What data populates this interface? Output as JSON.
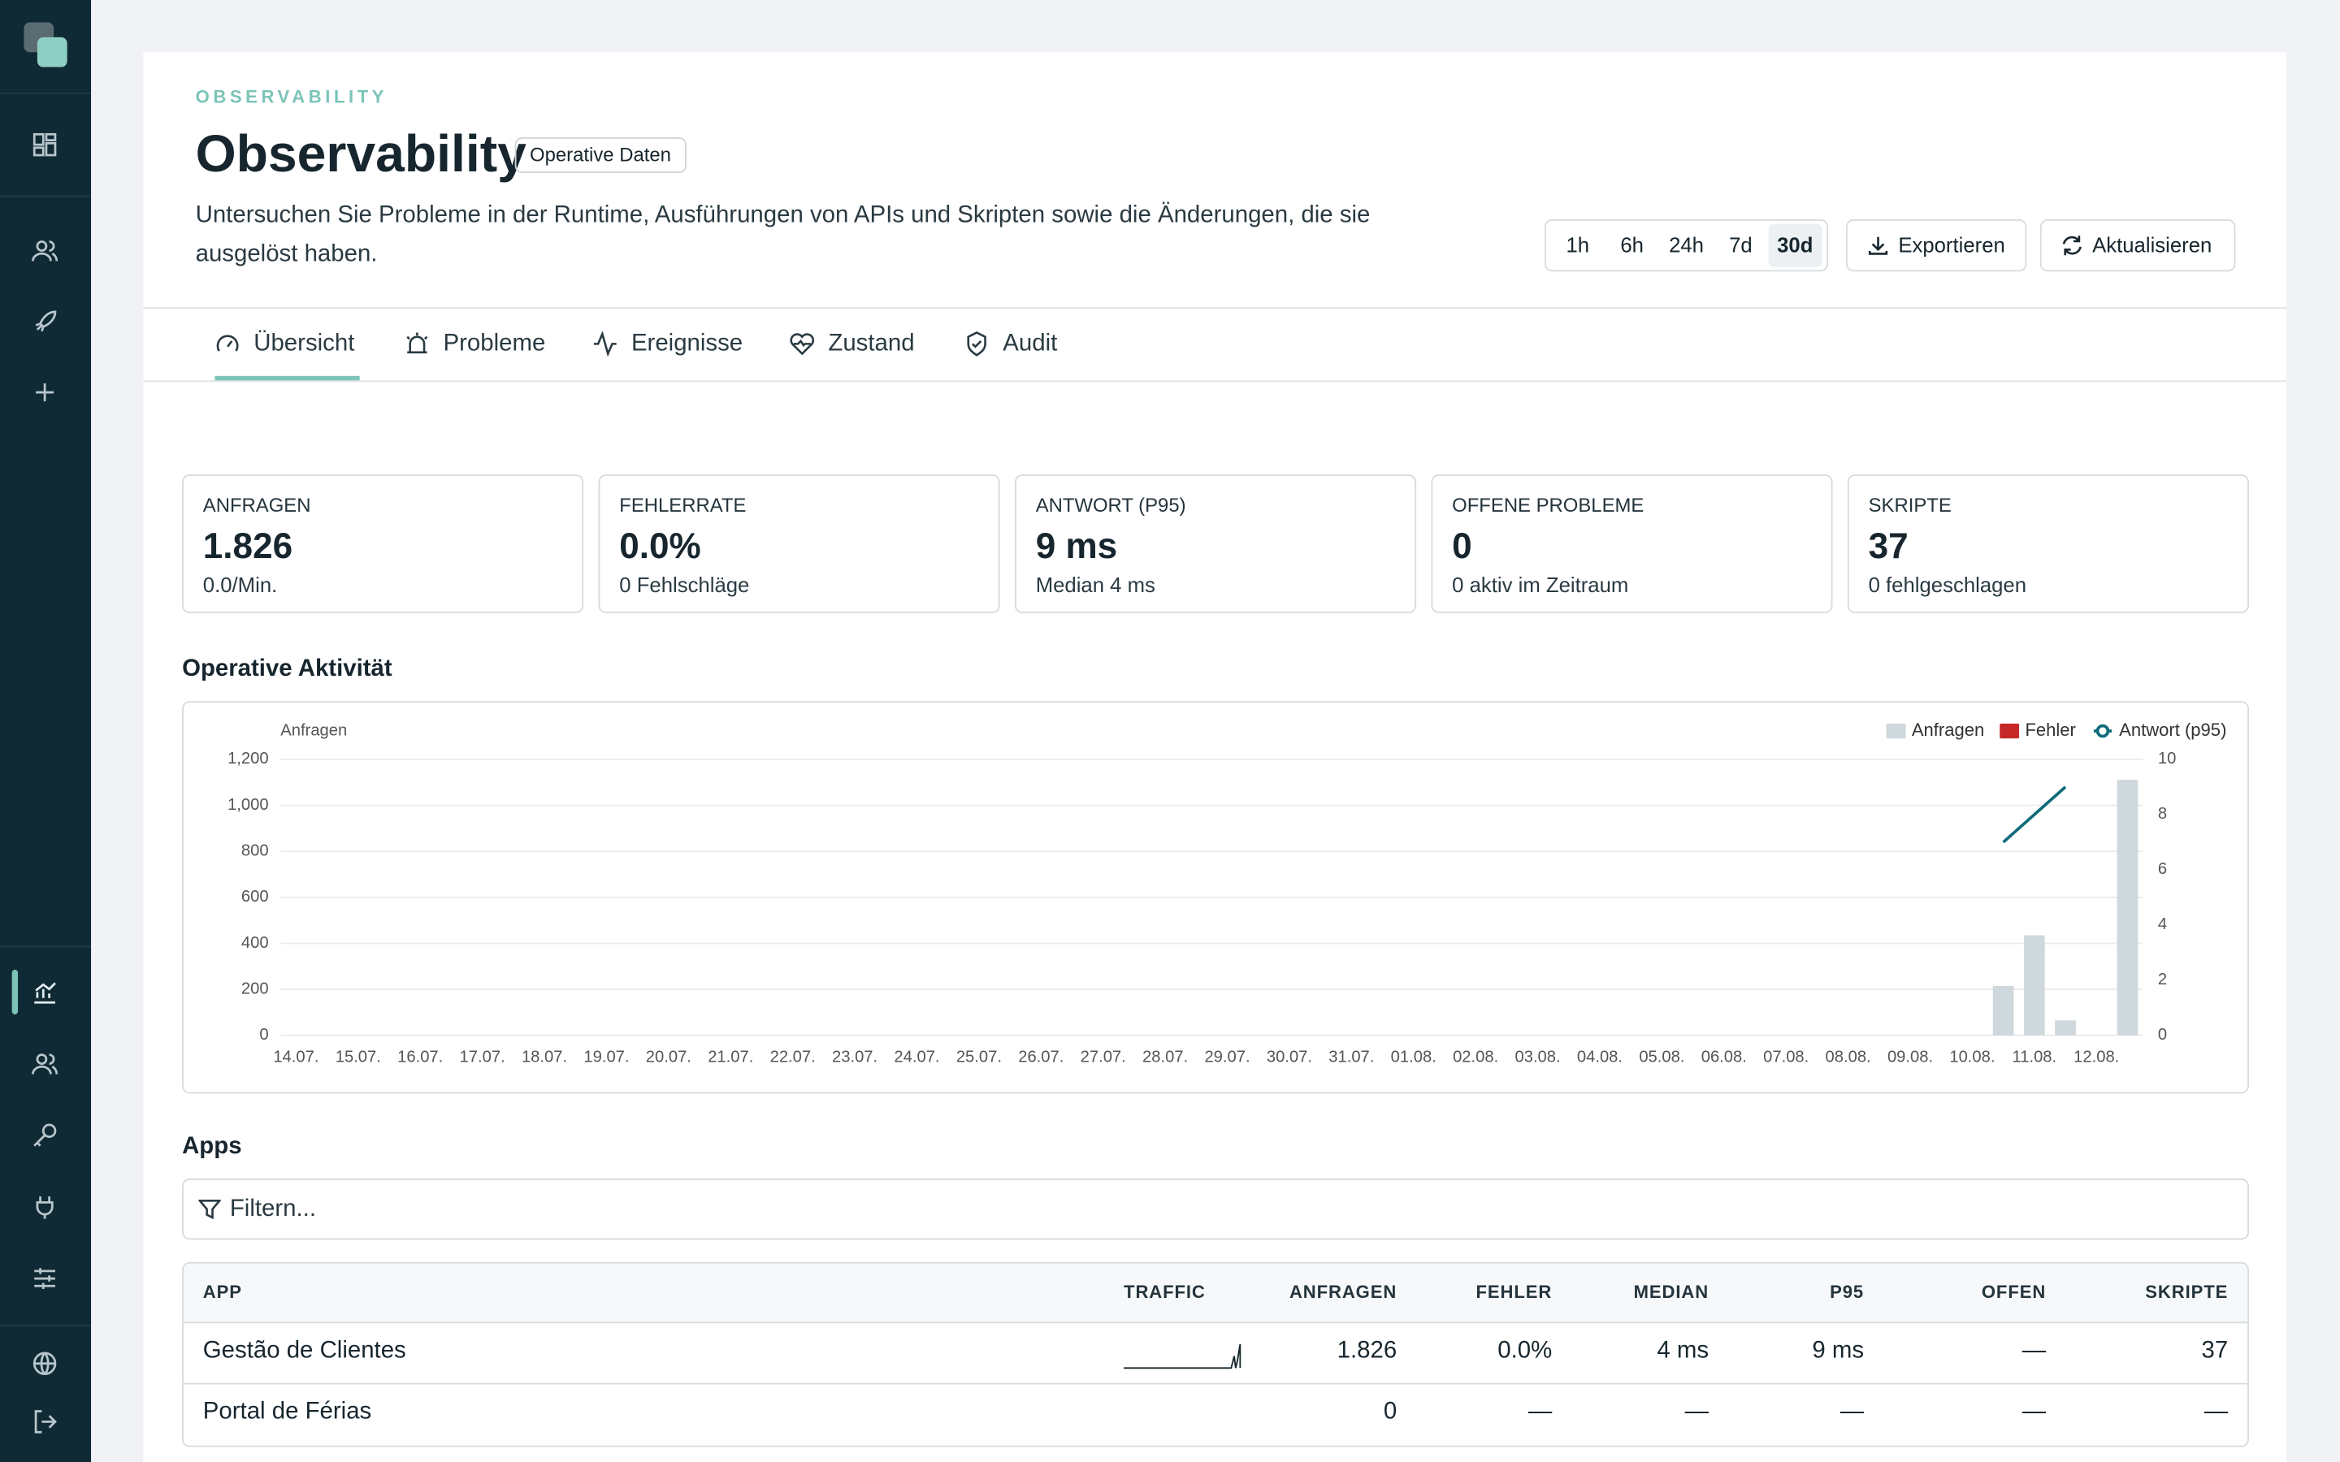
{
  "header": {
    "eyebrow": "OBSERVABILITY",
    "title": "Observability",
    "badge": "Operative Daten",
    "description": "Untersuchen Sie Probleme in der Runtime, Ausführungen von APIs und Skripten sowie die Änderungen, die sie ausgelöst haben.",
    "ranges": [
      "1h",
      "6h",
      "24h",
      "7d",
      "30d"
    ],
    "active_range": 4,
    "actions": [
      "Exportieren",
      "Aktualisieren"
    ]
  },
  "tabs": [
    "Übersicht",
    "Probleme",
    "Ereignisse",
    "Zustand",
    "Audit"
  ],
  "kpis": [
    {
      "label": "ANFRAGEN",
      "value": "1.826",
      "sub": "0.0/Min."
    },
    {
      "label": "FEHLERRATE",
      "value": "0.0%",
      "sub": "0 Fehlschläge"
    },
    {
      "label": "ANTWORT (P95)",
      "value": "9 ms",
      "sub": "Median 4 ms"
    },
    {
      "label": "OFFENE PROBLEME",
      "value": "0",
      "sub": "0 aktiv im Zeitraum"
    },
    {
      "label": "SKRIPTE",
      "value": "37",
      "sub": "0 fehlgeschlagen"
    }
  ],
  "activity_title": "Operative Aktivität",
  "chart_data": {
    "type": "bar",
    "y_label": "Anfragen",
    "categories": [
      "14.07.",
      null,
      "15.07.",
      null,
      "16.07.",
      null,
      "17.07.",
      null,
      "18.07.",
      null,
      "19.07.",
      null,
      "20.07.",
      null,
      "21.07.",
      null,
      "22.07.",
      null,
      "23.07.",
      null,
      "24.07.",
      null,
      "25.07.",
      null,
      "26.07.",
      null,
      "27.07.",
      null,
      "28.07.",
      null,
      "29.07.",
      null,
      "30.07.",
      null,
      "31.07.",
      null,
      "01.08.",
      null,
      "02.08.",
      null,
      "03.08.",
      null,
      "04.08.",
      null,
      "05.08.",
      null,
      "06.08.",
      null,
      "07.08.",
      null,
      "08.08.",
      null,
      "09.08.",
      null,
      "10.08.",
      null,
      "11.08.",
      null,
      "12.08.",
      null
    ],
    "series": [
      {
        "name": "Anfragen",
        "color": "#cfd8dc",
        "values": [
          0,
          0,
          0,
          0,
          0,
          0,
          0,
          0,
          0,
          0,
          0,
          0,
          0,
          0,
          0,
          0,
          0,
          0,
          0,
          0,
          0,
          0,
          0,
          0,
          0,
          0,
          0,
          0,
          0,
          0,
          0,
          0,
          0,
          0,
          0,
          0,
          0,
          0,
          0,
          0,
          0,
          0,
          0,
          0,
          0,
          0,
          0,
          0,
          0,
          0,
          0,
          0,
          0,
          0,
          0,
          215,
          435,
          65,
          0,
          1111
        ]
      },
      {
        "name": "Fehler",
        "color": "#c62828",
        "values": [
          0,
          0,
          0,
          0,
          0,
          0,
          0,
          0,
          0,
          0,
          0,
          0,
          0,
          0,
          0,
          0,
          0,
          0,
          0,
          0,
          0,
          0,
          0,
          0,
          0,
          0,
          0,
          0,
          0,
          0,
          0,
          0,
          0,
          0,
          0,
          0,
          0,
          0,
          0,
          0,
          0,
          0,
          0,
          0,
          0,
          0,
          0,
          0,
          0,
          0,
          0,
          0,
          0,
          0,
          0,
          0,
          0,
          0,
          0,
          0
        ]
      },
      {
        "name": "Antwort (p95)",
        "color": "#0e6b7a",
        "type": "line",
        "axis": "y2",
        "values": [
          null,
          null,
          null,
          null,
          null,
          null,
          null,
          null,
          null,
          null,
          null,
          null,
          null,
          null,
          null,
          null,
          null,
          null,
          null,
          null,
          null,
          null,
          null,
          null,
          null,
          null,
          null,
          null,
          null,
          null,
          null,
          null,
          null,
          null,
          null,
          null,
          null,
          null,
          null,
          null,
          null,
          null,
          null,
          null,
          null,
          null,
          null,
          null,
          null,
          null,
          null,
          null,
          null,
          null,
          null,
          7,
          8,
          9,
          null,
          null
        ]
      }
    ],
    "ylim": [
      0,
      1200
    ],
    "yticks": [
      0,
      200,
      400,
      600,
      800,
      {
        "value": 1000,
        "label": "1,000"
      },
      {
        "value": 1200,
        "label": "1,200"
      }
    ],
    "y2lim": [
      0,
      10
    ],
    "y2ticks": [
      0,
      2,
      4,
      6,
      8,
      10
    ],
    "grid": true,
    "legend": "top-right"
  },
  "apps": {
    "title": "Apps",
    "filter_placeholder": "Filtern...",
    "columns": [
      "APP",
      "TRAFFIC",
      "ANFRAGEN",
      "FEHLER",
      "MEDIAN",
      "P95",
      "OFFEN",
      "SKRIPTE"
    ],
    "rows": [
      [
        "Gestão de Clientes",
        "1.826",
        "0.0%",
        "4 ms",
        "9 ms",
        "—",
        "37"
      ],
      [
        "Portal de Férias",
        "0",
        "—",
        "—",
        "—",
        "—",
        "—"
      ]
    ]
  }
}
